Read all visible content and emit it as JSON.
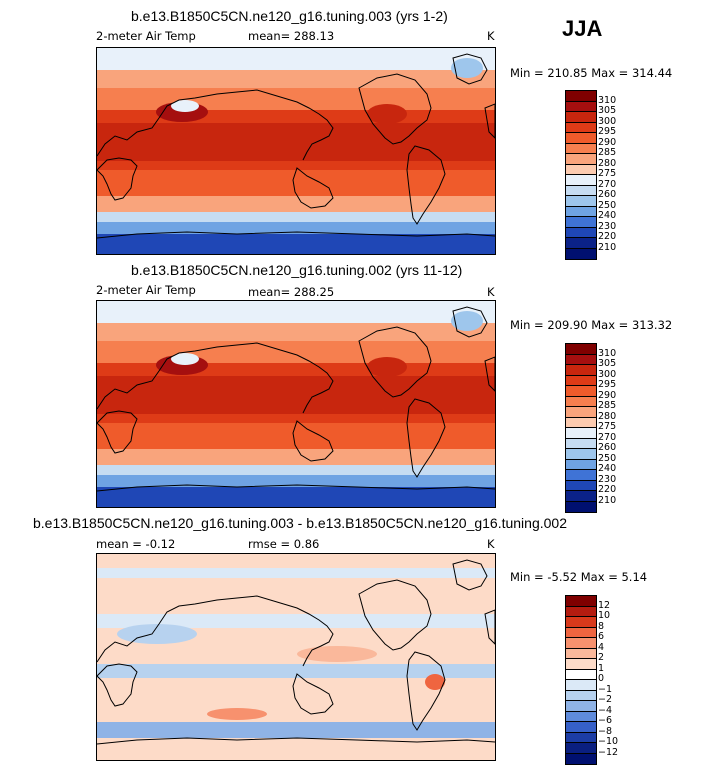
{
  "season": "JJA",
  "panels": [
    {
      "title": "b.e13.B1850C5CN.ne120_g16.tuning.003 (yrs 1-2)",
      "variable": "2-meter Air Temp",
      "stat_left": "",
      "stat_mid": "mean=  288.13",
      "units": "K",
      "minmax": "Min = 210.85  Max = 314.44",
      "kind": "absolute",
      "colorbar_labels": [
        "310",
        "305",
        "300",
        "295",
        "290",
        "285",
        "280",
        "275",
        "270",
        "260",
        "250",
        "240",
        "230",
        "220",
        "210"
      ]
    },
    {
      "title": "b.e13.B1850C5CN.ne120_g16.tuning.002 (yrs 11-12)",
      "variable": "2-meter Air Temp",
      "stat_left": "",
      "stat_mid": "mean=  288.25",
      "units": "K",
      "minmax": "Min = 209.90  Max = 313.32",
      "kind": "absolute",
      "colorbar_labels": [
        "310",
        "305",
        "300",
        "295",
        "290",
        "285",
        "280",
        "275",
        "270",
        "260",
        "250",
        "240",
        "230",
        "220",
        "210"
      ]
    },
    {
      "title": "b.e13.B1850C5CN.ne120_g16.tuning.003 - b.e13.B1850C5CN.ne120_g16.tuning.002",
      "variable": "",
      "stat_left": "mean =  -0.12",
      "stat_mid": "rmse =   0.86",
      "units": "K",
      "minmax": "Min =  -5.52  Max =   5.14",
      "kind": "difference",
      "colorbar_labels": [
        "12",
        "10",
        "8",
        "6",
        "4",
        "2",
        "1",
        "0",
        "−1",
        "−2",
        "−4",
        "−6",
        "−8",
        "−10",
        "−12"
      ]
    }
  ],
  "colors": {
    "absolute_scale": [
      "#7f0000",
      "#a50f0f",
      "#c8260e",
      "#de3b17",
      "#ef5b2b",
      "#f67f4f",
      "#f9a47c",
      "#fccbb0",
      "#e8f1fa",
      "#c6dcf2",
      "#9ec6ec",
      "#6fa3e3",
      "#3f73d6",
      "#1f47b6",
      "#0b2288",
      "#001070"
    ],
    "difference_scale": [
      "#7f0000",
      "#b41c10",
      "#d8391b",
      "#ef6540",
      "#f7916e",
      "#fab89b",
      "#fddbc8",
      "#ffffff",
      "#dbe9f7",
      "#b7d2ef",
      "#8fb3e6",
      "#5f8bdb",
      "#3660c8",
      "#1c3da5",
      "#0a1f80",
      "#001070"
    ],
    "coastline": "#000000",
    "frame": "#000000"
  }
}
